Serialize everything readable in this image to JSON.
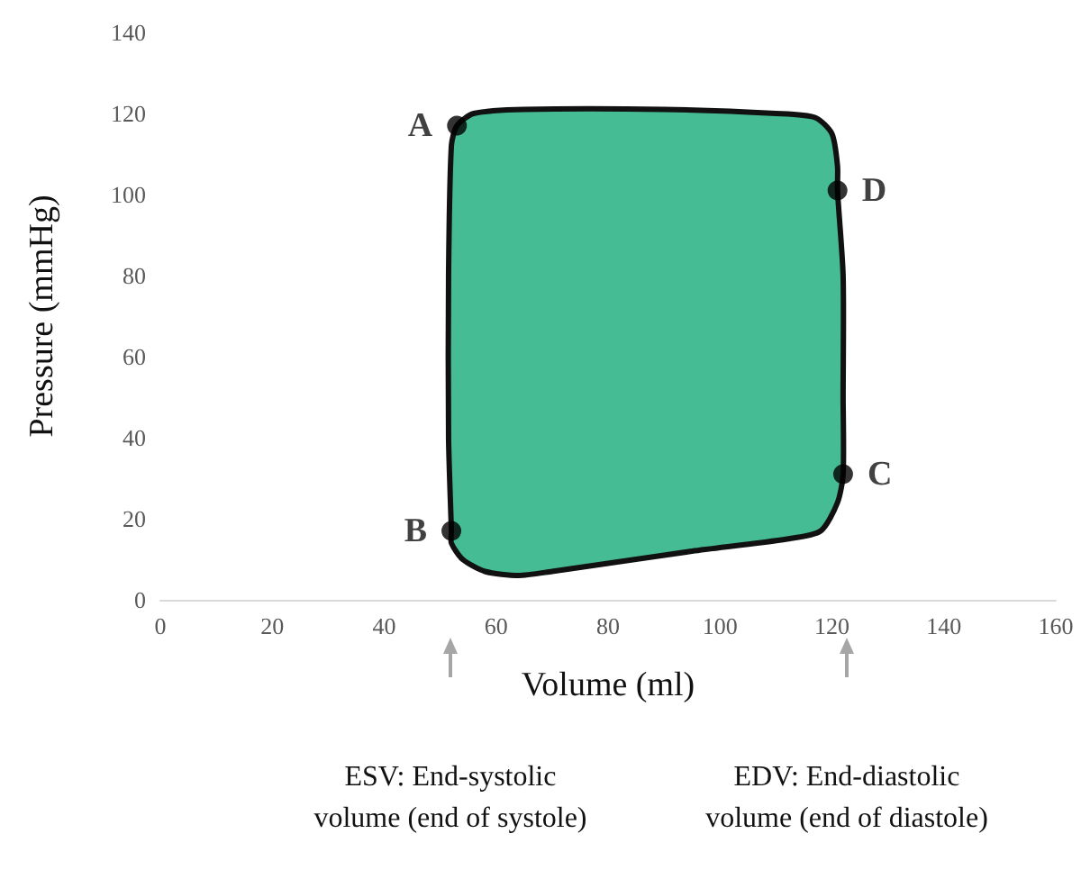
{
  "chart_data": {
    "type": "area",
    "xlabel": "Volume (ml)",
    "ylabel": "Pressure (mmHg)",
    "xlim": [
      0,
      160
    ],
    "xticks": [
      0,
      20,
      40,
      60,
      80,
      100,
      120,
      140,
      160
    ],
    "ylim": [
      0,
      140
    ],
    "yticks": [
      0,
      20,
      40,
      60,
      80,
      100,
      120,
      140
    ],
    "grid": false,
    "series": [
      {
        "color": "#45bc94",
        "x": [
          52,
          53,
          56,
          65,
          90,
          110,
          117,
          120,
          121,
          121,
          122,
          122,
          122,
          121,
          118,
          112,
          95,
          80,
          70,
          64,
          58,
          54,
          52,
          52,
          51.5,
          51.5
        ],
        "values": [
          112,
          117,
          120,
          121,
          121,
          120,
          119,
          115,
          107,
          101,
          80,
          50,
          31,
          24,
          17,
          15,
          12,
          9,
          7,
          6,
          7,
          10,
          14,
          17,
          40,
          80
        ]
      },
      {
        "type": "scatter",
        "color": "#000000",
        "marker": "circle",
        "x": [
          53,
          52,
          122,
          121
        ],
        "values": [
          117,
          17,
          31,
          101
        ],
        "value_labels": [
          "A",
          "B",
          "C",
          "D"
        ]
      }
    ],
    "annotations": [
      "ESV: End-systolic volume (end of systole)",
      "EDV: End-diastolic volume (end of diastole)"
    ]
  }
}
